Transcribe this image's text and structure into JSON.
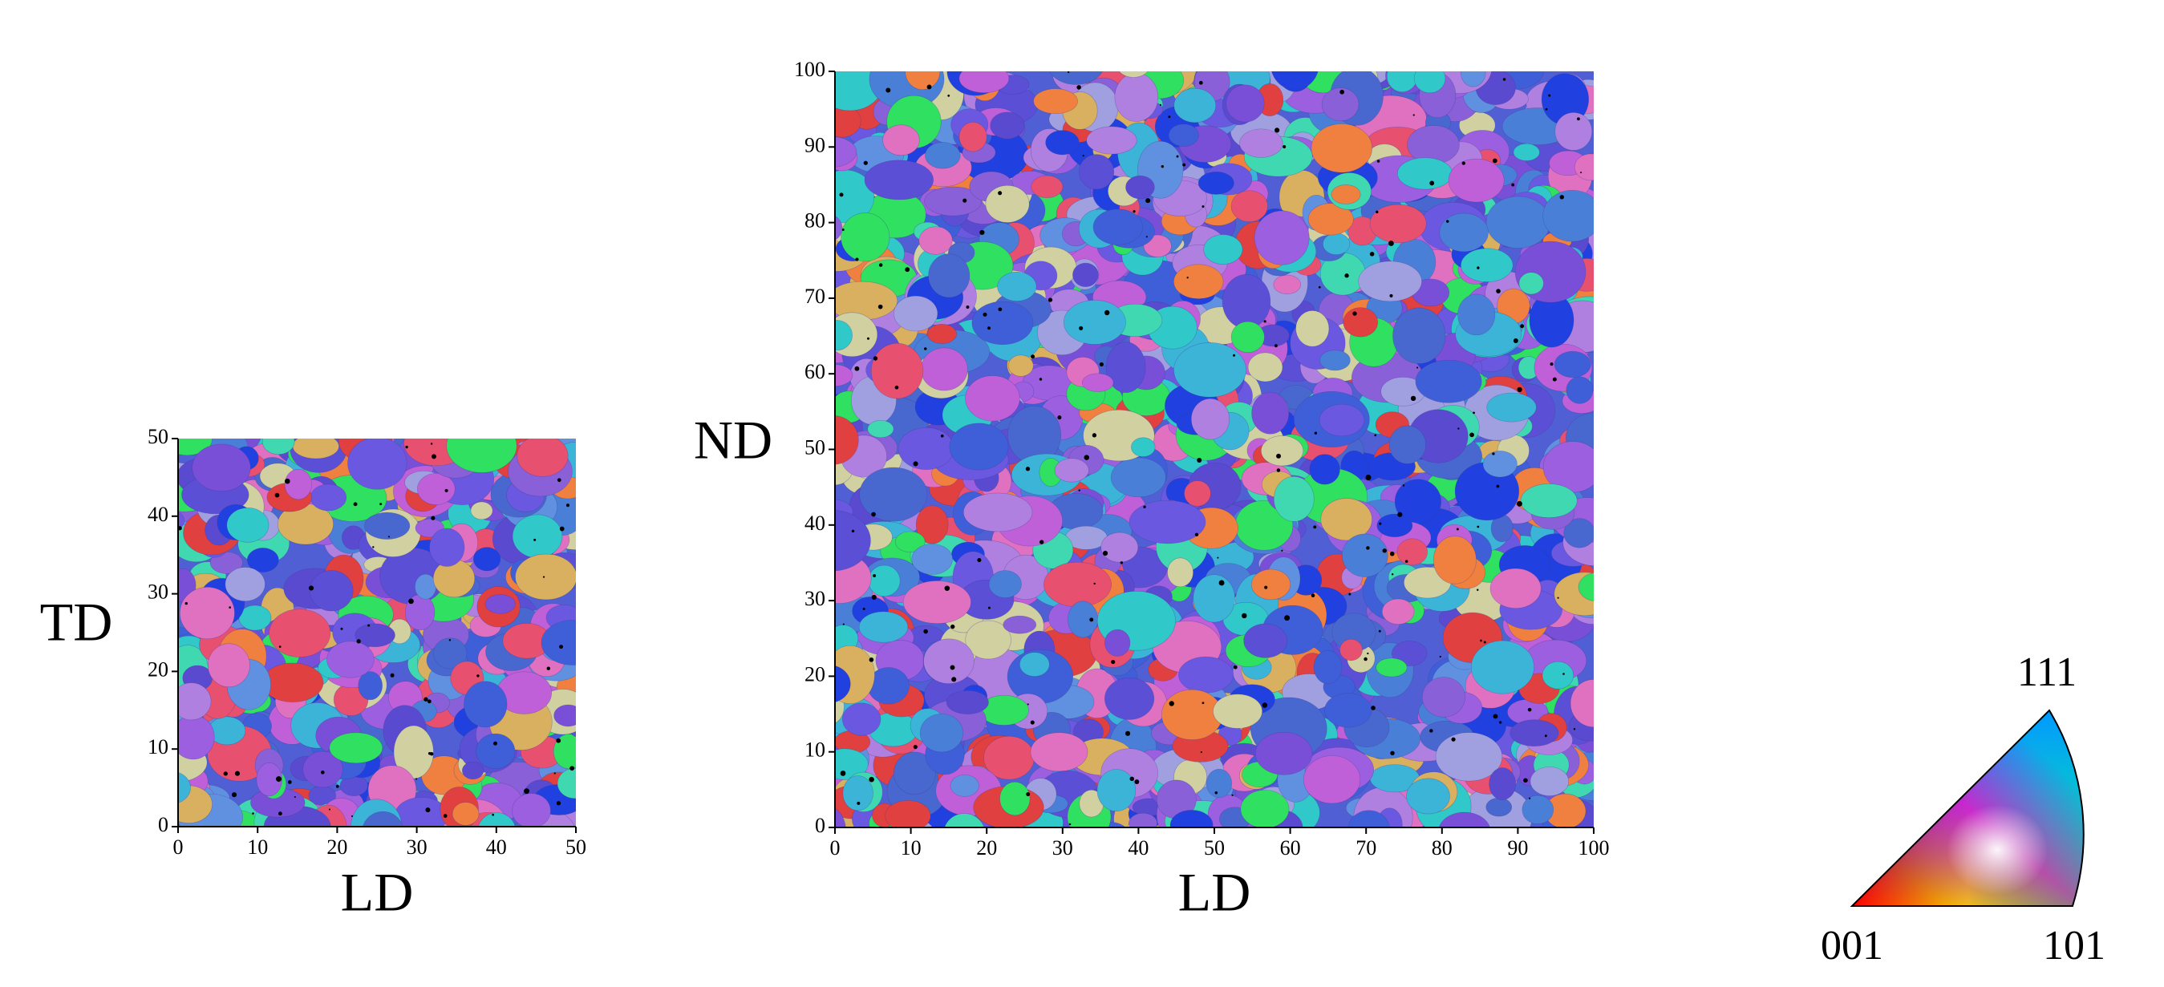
{
  "chart_data": [
    {
      "type": "map",
      "xlabel": "LD",
      "ylabel": "TD",
      "xlim": [
        0,
        50
      ],
      "ylim": [
        0,
        50
      ],
      "xticks": [
        0,
        10,
        20,
        30,
        40,
        50
      ],
      "yticks": [
        0,
        10,
        20,
        30,
        40,
        50
      ]
    },
    {
      "type": "map",
      "xlabel": "LD",
      "ylabel": "ND",
      "xlim": [
        0,
        100
      ],
      "ylim": [
        0,
        100
      ],
      "xticks": [
        0,
        10,
        20,
        30,
        40,
        50,
        60,
        70,
        80,
        90,
        100
      ],
      "yticks": [
        0,
        10,
        20,
        30,
        40,
        50,
        60,
        70,
        80,
        90,
        100
      ]
    }
  ],
  "ipf_key": {
    "labels": [
      "001",
      "101",
      "111"
    ]
  }
}
